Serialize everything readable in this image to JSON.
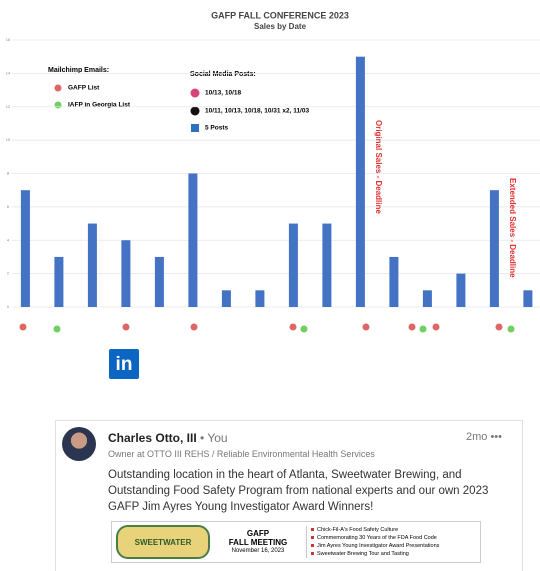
{
  "chart_data": {
    "type": "bar",
    "title": "GAFP FALL CONFERENCE 2023",
    "subtitle": "Sales by Date",
    "categories": [
      null,
      null,
      null,
      null,
      null,
      null,
      null,
      null,
      null,
      null,
      null,
      null,
      null,
      null,
      null,
      null
    ],
    "values": [
      7,
      3,
      5,
      4,
      3,
      8,
      1,
      1,
      5,
      5,
      15,
      3,
      1,
      2,
      7,
      1
    ],
    "color": "#4472c4",
    "ylim": [
      0,
      16
    ],
    "yticks": [
      0,
      2,
      4,
      6,
      8,
      10,
      12,
      14,
      16
    ],
    "grid": true,
    "annotations": [
      "Original Sales - Deadline",
      "Extended Sales - Deadline"
    ],
    "legend": {
      "emails_title": "Mailchimp Emails:",
      "emails": [
        "GAFP List",
        "IAFP in Georgia List"
      ],
      "social_title": "Social Media Posts:",
      "social": [
        "10/13, 10/18",
        "10/11, 10/13, 10/18, 10/31 x2, 11/03",
        "5 Posts"
      ]
    }
  },
  "post": {
    "name": "Charles Otto, III",
    "badge": "• You",
    "headline": "Owner at OTTO III REHS / Reliable Environmental Health Services",
    "time": "2mo",
    "text": "Outstanding location in the heart of Atlanta, Sweetwater Brewing, and Outstanding Food Safety Program from national experts and our own 2023 GAFP Jim Ayres Young Investigator Award Winners!",
    "image": {
      "logo": "SWEETWATER",
      "event": "GAFP",
      "event_sub": "FALL MEETING",
      "date": "November 16, 2023",
      "items": [
        "Chick-Fil-A's Food Safety Culture",
        "Commemorating 30 Years of the FDA Food Code",
        "Jim Ayres Young Investigator Award Presentations",
        "Sweetwater Brewing Tour and Tasting"
      ]
    }
  }
}
